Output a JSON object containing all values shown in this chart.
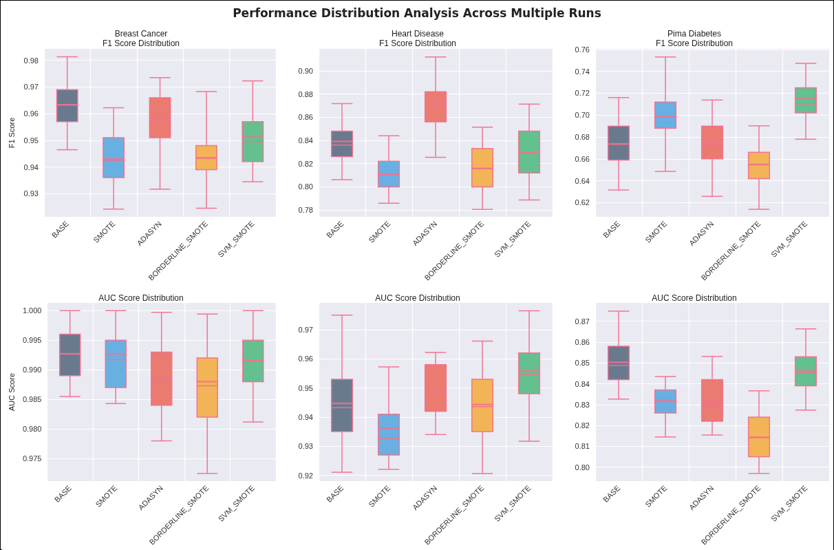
{
  "chart_data": [
    {
      "type": "box",
      "title": "Breast Cancer\nF1 Score Distribution",
      "ylabel": "F1 Score",
      "annotations": [
        "Performance Distribution Analysis Across Multiple Runs"
      ],
      "categories": [
        "BASE",
        "SMOTE",
        "ADASYN",
        "BORDERLINE_SMOTE",
        "SVM_SMOTE"
      ],
      "colors": [
        "#637488",
        "#62ade0",
        "#eb7468",
        "#f2b14e",
        "#5dbe88"
      ],
      "ylim": [
        0.9213,
        0.9843
      ],
      "yticks": [
        {
          "value": 0.93,
          "label": "0.93"
        },
        {
          "value": 0.94,
          "label": "0.94"
        },
        {
          "value": 0.95,
          "label": "0.95"
        },
        {
          "value": 0.96,
          "label": "0.96"
        },
        {
          "value": 0.97,
          "label": "0.97"
        },
        {
          "value": 0.98,
          "label": "0.98"
        }
      ],
      "grid": true,
      "boxes": [
        {
          "low": 0.9465,
          "q1": 0.957,
          "median": 0.9633,
          "q3": 0.969,
          "high": 0.9813,
          "mean": 0.9633
        },
        {
          "low": 0.9242,
          "q1": 0.936,
          "median": 0.9425,
          "q3": 0.951,
          "high": 0.9622,
          "mean": 0.943
        },
        {
          "low": 0.9317,
          "q1": 0.951,
          "median": 0.958,
          "q3": 0.966,
          "high": 0.9735,
          "mean": 0.958
        },
        {
          "low": 0.9245,
          "q1": 0.939,
          "median": 0.9434,
          "q3": 0.948,
          "high": 0.9683,
          "mean": 0.9434
        },
        {
          "low": 0.9345,
          "q1": 0.942,
          "median": 0.9495,
          "q3": 0.957,
          "high": 0.9723,
          "mean": 0.9512
        }
      ]
    },
    {
      "type": "box",
      "title": "Heart Disease\nF1 Score Distribution",
      "categories": [
        "BASE",
        "SMOTE",
        "ADASYN",
        "BORDERLINE_SMOTE",
        "SVM_SMOTE"
      ],
      "colors": [
        "#637488",
        "#62ade0",
        "#eb7468",
        "#f2b14e",
        "#5dbe88"
      ],
      "ylim": [
        0.7741,
        0.919
      ],
      "yticks": [
        {
          "value": 0.78,
          "label": "0.78"
        },
        {
          "value": 0.8,
          "label": "0.80"
        },
        {
          "value": 0.82,
          "label": "0.82"
        },
        {
          "value": 0.84,
          "label": "0.84"
        },
        {
          "value": 0.86,
          "label": "0.86"
        },
        {
          "value": 0.88,
          "label": "0.88"
        },
        {
          "value": 0.9,
          "label": "0.90"
        }
      ],
      "grid": true,
      "boxes": [
        {
          "low": 0.8061,
          "q1": 0.826,
          "median": 0.836,
          "q3": 0.848,
          "high": 0.8718,
          "mean": 0.8392
        },
        {
          "low": 0.7859,
          "q1": 0.8,
          "median": 0.8107,
          "q3": 0.822,
          "high": 0.8441,
          "mean": 0.8107
        },
        {
          "low": 0.8255,
          "q1": 0.856,
          "median": 0.8715,
          "q3": 0.882,
          "high": 0.912,
          "mean": 0.8715
        },
        {
          "low": 0.7805,
          "q1": 0.8,
          "median": 0.8158,
          "q3": 0.833,
          "high": 0.8515,
          "mean": 0.8158
        },
        {
          "low": 0.7887,
          "q1": 0.812,
          "median": 0.8293,
          "q3": 0.848,
          "high": 0.8713,
          "mean": 0.8293
        }
      ]
    },
    {
      "type": "box",
      "title": "Pima Diabetes\nF1 Score Distribution",
      "categories": [
        "BASE",
        "SMOTE",
        "ADASYN",
        "BORDERLINE_SMOTE",
        "SVM_SMOTE"
      ],
      "colors": [
        "#637488",
        "#62ade0",
        "#eb7468",
        "#f2b14e",
        "#5dbe88"
      ],
      "ylim": [
        0.607,
        0.7606
      ],
      "yticks": [
        {
          "value": 0.62,
          "label": "0.62"
        },
        {
          "value": 0.64,
          "label": "0.64"
        },
        {
          "value": 0.66,
          "label": "0.66"
        },
        {
          "value": 0.68,
          "label": "0.68"
        },
        {
          "value": 0.7,
          "label": "0.70"
        },
        {
          "value": 0.72,
          "label": "0.72"
        },
        {
          "value": 0.74,
          "label": "0.74"
        },
        {
          "value": 0.76,
          "label": "0.76"
        }
      ],
      "grid": true,
      "boxes": [
        {
          "low": 0.6315,
          "q1": 0.659,
          "median": 0.6736,
          "q3": 0.69,
          "high": 0.716,
          "mean": 0.6736
        },
        {
          "low": 0.6485,
          "q1": 0.688,
          "median": 0.6985,
          "q3": 0.712,
          "high": 0.7532,
          "mean": 0.6985
        },
        {
          "low": 0.6257,
          "q1": 0.66,
          "median": 0.6727,
          "q3": 0.69,
          "high": 0.7139,
          "mean": 0.676
        },
        {
          "low": 0.614,
          "q1": 0.642,
          "median": 0.6548,
          "q3": 0.666,
          "high": 0.6903,
          "mean": 0.6548
        },
        {
          "low": 0.6779,
          "q1": 0.702,
          "median": 0.7102,
          "q3": 0.725,
          "high": 0.7474,
          "mean": 0.7149
        }
      ]
    },
    {
      "type": "box",
      "title": "AUC Score Distribution",
      "ylabel": "AUC Score",
      "categories": [
        "BASE",
        "SMOTE",
        "ADASYN",
        "BORDERLINE_SMOTE",
        "SVM_SMOTE"
      ],
      "colors": [
        "#637488",
        "#62ade0",
        "#eb7468",
        "#f2b14e",
        "#5dbe88"
      ],
      "ylim": [
        0.9712,
        1.0013
      ],
      "yticks": [
        {
          "value": 0.975,
          "label": "0.975"
        },
        {
          "value": 0.98,
          "label": "0.980"
        },
        {
          "value": 0.985,
          "label": "0.985"
        },
        {
          "value": 0.99,
          "label": "0.990"
        },
        {
          "value": 0.995,
          "label": "0.995"
        },
        {
          "value": 1,
          "label": "1.000"
        }
      ],
      "grid": true,
      "boxes": [
        {
          "low": 0.9855,
          "q1": 0.989,
          "median": 0.9927,
          "q3": 0.996,
          "high": 1,
          "mean": 0.9927
        },
        {
          "low": 0.9843,
          "q1": 0.987,
          "median": 0.9917,
          "q3": 0.995,
          "high": 1,
          "mean": 0.9927
        },
        {
          "low": 0.978,
          "q1": 0.984,
          "median": 0.9885,
          "q3": 0.993,
          "high": 0.9997,
          "mean": 0.9885
        },
        {
          "low": 0.9725,
          "q1": 0.982,
          "median": 0.9873,
          "q3": 0.992,
          "high": 0.9994,
          "mean": 0.988
        },
        {
          "low": 0.9812,
          "q1": 0.988,
          "median": 0.9916,
          "q3": 0.995,
          "high": 1,
          "mean": 0.9916
        }
      ]
    },
    {
      "type": "box",
      "title": "AUC Score Distribution",
      "categories": [
        "BASE",
        "SMOTE",
        "ADASYN",
        "BORDERLINE_SMOTE",
        "SVM_SMOTE"
      ],
      "colors": [
        "#637488",
        "#62ade0",
        "#eb7468",
        "#f2b14e",
        "#5dbe88"
      ],
      "ylim": [
        0.918,
        0.9792
      ],
      "yticks": [
        {
          "value": 0.92,
          "label": "0.92"
        },
        {
          "value": 0.93,
          "label": "0.93"
        },
        {
          "value": 0.94,
          "label": "0.94"
        },
        {
          "value": 0.95,
          "label": "0.95"
        },
        {
          "value": 0.96,
          "label": "0.96"
        },
        {
          "value": 0.97,
          "label": "0.97"
        }
      ],
      "grid": true,
      "boxes": [
        {
          "low": 0.9211,
          "q1": 0.935,
          "median": 0.9432,
          "q3": 0.953,
          "high": 0.975,
          "mean": 0.9447
        },
        {
          "low": 0.9221,
          "q1": 0.927,
          "median": 0.9327,
          "q3": 0.941,
          "high": 0.9572,
          "mean": 0.9361
        },
        {
          "low": 0.934,
          "q1": 0.942,
          "median": 0.9488,
          "q3": 0.958,
          "high": 0.9622,
          "mean": 0.9488
        },
        {
          "low": 0.9206,
          "q1": 0.935,
          "median": 0.9436,
          "q3": 0.953,
          "high": 0.9661,
          "mean": 0.9443
        },
        {
          "low": 0.9317,
          "q1": 0.948,
          "median": 0.9546,
          "q3": 0.962,
          "high": 0.9765,
          "mean": 0.9558
        }
      ]
    },
    {
      "type": "box",
      "title": "AUC Score Distribution",
      "categories": [
        "BASE",
        "SMOTE",
        "ADASYN",
        "BORDERLINE_SMOTE",
        "SVM_SMOTE"
      ],
      "colors": [
        "#637488",
        "#62ade0",
        "#eb7468",
        "#f2b14e",
        "#5dbe88"
      ],
      "ylim": [
        0.7933,
        0.8788
      ],
      "yticks": [
        {
          "value": 0.8,
          "label": "0.80"
        },
        {
          "value": 0.81,
          "label": "0.81"
        },
        {
          "value": 0.82,
          "label": "0.82"
        },
        {
          "value": 0.83,
          "label": "0.83"
        },
        {
          "value": 0.84,
          "label": "0.84"
        },
        {
          "value": 0.85,
          "label": "0.85"
        },
        {
          "value": 0.86,
          "label": "0.86"
        },
        {
          "value": 0.87,
          "label": "0.87"
        }
      ],
      "grid": true,
      "boxes": [
        {
          "low": 0.8327,
          "q1": 0.842,
          "median": 0.8488,
          "q3": 0.858,
          "high": 0.8748,
          "mean": 0.8503
        },
        {
          "low": 0.8145,
          "q1": 0.826,
          "median": 0.8314,
          "q3": 0.837,
          "high": 0.8435,
          "mean": 0.8322
        },
        {
          "low": 0.8154,
          "q1": 0.822,
          "median": 0.8291,
          "q3": 0.842,
          "high": 0.8531,
          "mean": 0.8318
        },
        {
          "low": 0.797,
          "q1": 0.805,
          "median": 0.8143,
          "q3": 0.824,
          "high": 0.8366,
          "mean": 0.8143
        },
        {
          "low": 0.8274,
          "q1": 0.839,
          "median": 0.8454,
          "q3": 0.853,
          "high": 0.8663,
          "mean": 0.8467
        }
      ]
    }
  ]
}
